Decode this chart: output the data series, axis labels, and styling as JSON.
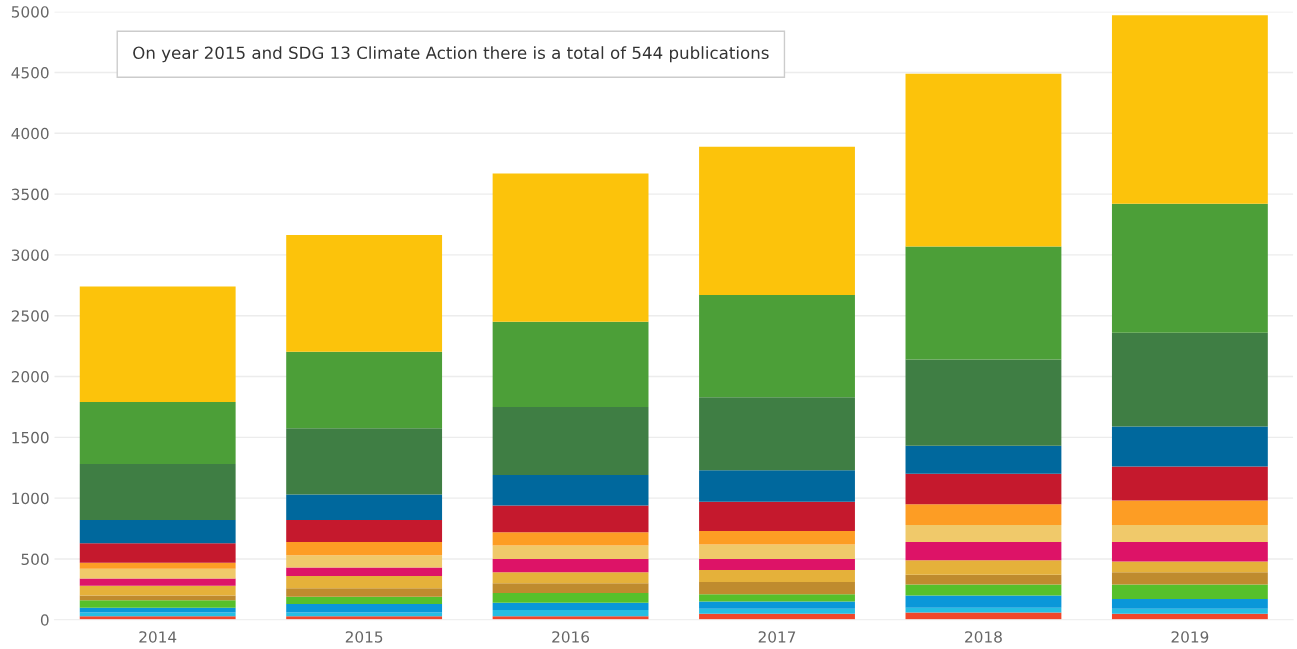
{
  "chart_data": {
    "type": "bar",
    "stacked": true,
    "categories": [
      "2014",
      "2015",
      "2016",
      "2017",
      "2018",
      "2019"
    ],
    "series": [
      {
        "color": "#f0462a",
        "values": [
          30,
          30,
          30,
          50,
          60,
          50
        ]
      },
      {
        "color": "#26bde2",
        "values": [
          30,
          30,
          50,
          40,
          40,
          40
        ]
      },
      {
        "color": "#0a97d9",
        "values": [
          40,
          70,
          60,
          60,
          100,
          80
        ]
      },
      {
        "color": "#56c02b",
        "values": [
          60,
          60,
          80,
          60,
          90,
          120
        ]
      },
      {
        "color": "#bf8b2e",
        "values": [
          40,
          70,
          80,
          100,
          80,
          100
        ]
      },
      {
        "color": "#e5b13a",
        "values": [
          80,
          100,
          90,
          100,
          120,
          90
        ]
      },
      {
        "color": "#dd1367",
        "values": [
          60,
          70,
          110,
          90,
          150,
          160
        ]
      },
      {
        "color": "#f0c96a",
        "values": [
          80,
          100,
          110,
          120,
          140,
          140
        ]
      },
      {
        "color": "#fd9d24",
        "values": [
          50,
          110,
          110,
          110,
          170,
          200
        ]
      },
      {
        "color": "#c5192d",
        "values": [
          160,
          180,
          220,
          240,
          250,
          280
        ]
      },
      {
        "color": "#00689d",
        "values": [
          190,
          210,
          250,
          260,
          230,
          330
        ]
      },
      {
        "color": "#3f7e44",
        "values": [
          460,
          544,
          560,
          600,
          710,
          770
        ]
      },
      {
        "color": "#4c9f38",
        "values": [
          510,
          630,
          700,
          840,
          930,
          1060
        ]
      },
      {
        "color": "#fcc30b",
        "values": [
          950,
          960,
          1220,
          1220,
          1420,
          1550
        ]
      }
    ],
    "ylim": [
      0,
      5000
    ],
    "yticks": [
      0,
      500,
      1000,
      1500,
      2000,
      2500,
      3000,
      3500,
      4000,
      4500,
      5000
    ],
    "grid": "y",
    "annotations": [
      "On year 2015 and SDG 13 Climate Action there is a total of 544 publications"
    ]
  }
}
